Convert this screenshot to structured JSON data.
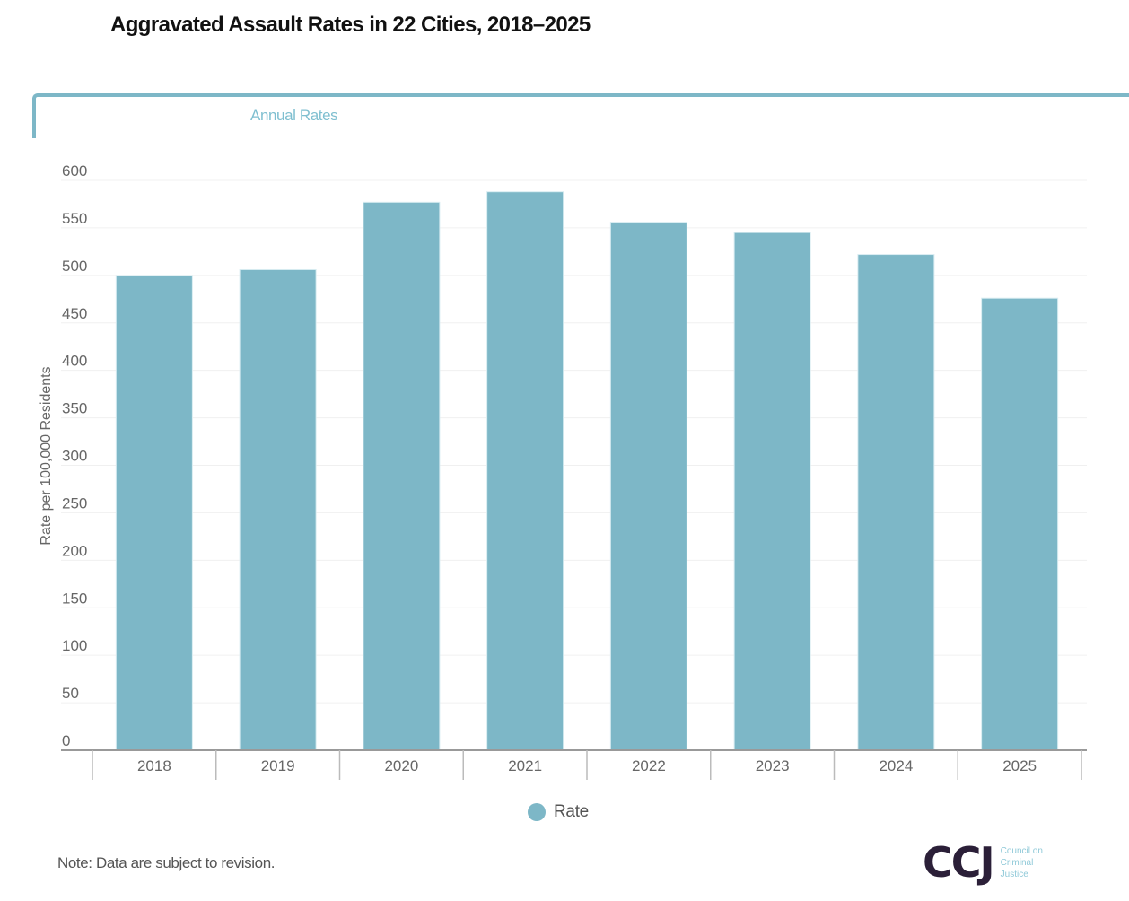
{
  "title": "Aggravated Assault Rates in 22 Cities, 2018–2025",
  "tabs": [
    {
      "label": "Annual Rates",
      "active": true
    }
  ],
  "note": "Note: Data are subject to revision.",
  "logo": {
    "mark": "CCJ",
    "lines": [
      "Council on",
      "Criminal",
      "Justice"
    ]
  },
  "colors": {
    "bar": "#7db7c7",
    "accent": "#7db7c7",
    "logo_dark": "#2b1f38"
  },
  "chart_data": {
    "type": "bar",
    "title": "Aggravated Assault Rates in 22 Cities, 2018–2025",
    "xlabel": "",
    "ylabel": "Rate per 100,000 Residents",
    "categories": [
      "2018",
      "2019",
      "2020",
      "2021",
      "2022",
      "2023",
      "2024",
      "2025"
    ],
    "series": [
      {
        "name": "Rate",
        "values": [
          500,
          506,
          577,
          588,
          556,
          545,
          522,
          476
        ]
      }
    ],
    "ylim": [
      0,
      600
    ],
    "yticks": [
      0,
      50,
      100,
      150,
      200,
      250,
      300,
      350,
      400,
      450,
      500,
      550,
      600
    ],
    "grid": true,
    "legend": "bottom-center"
  }
}
